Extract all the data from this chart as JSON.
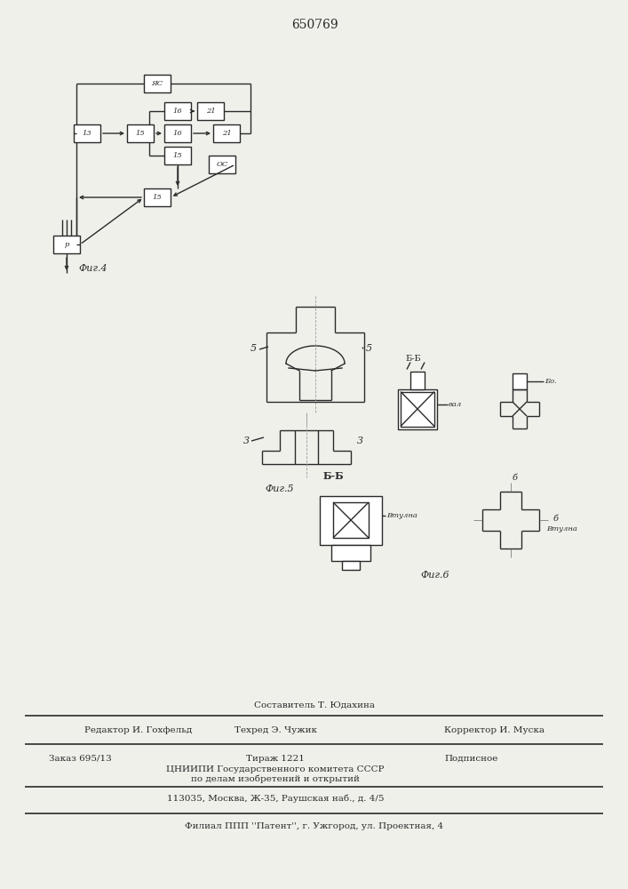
{
  "patent_number": "650769",
  "bg_color": "#f0f0eb",
  "line_color": "#2a2a2a",
  "fig4_label": "Фиг.4",
  "fig5_label": "Фиг.5",
  "fig6_label": "Фиг.6",
  "footer_line1_left": "Редактор И. Гохфельд",
  "footer_line1_mid": "Техред Э. Чужик",
  "footer_line1_right": "Корректор И. Муска",
  "footer_line2_left": "Заказ 695/13",
  "footer_line2_mid": "Тираж 1221",
  "footer_line2_right": "Подписное",
  "footer_line3": "ЦНИИПИ Государственного комитета СССР",
  "footer_line4": "по делам изобретений и открытий",
  "footer_line5": "113035, Москва, Ж-35, Раушская наб., д. 4/5",
  "footer_line6": "Филиал ППП ''Патент'', г. Ужгород, ул. Проектная, 4",
  "sostavitel": "Составитель Т. Юдахина"
}
